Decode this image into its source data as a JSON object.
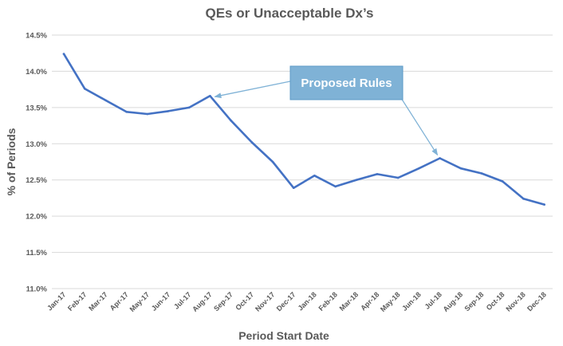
{
  "chart_data": {
    "type": "line",
    "title": "QEs or Unacceptable Dx’s",
    "xlabel": "Period Start Date",
    "ylabel": "% of Periods",
    "ylim": [
      11.0,
      14.5
    ],
    "yticks": [
      "11.0%",
      "11.5%",
      "12.0%",
      "12.5%",
      "13.0%",
      "13.5%",
      "14.0%",
      "14.5%"
    ],
    "grid": true,
    "categories": [
      "Jan-17",
      "Feb-17",
      "Mar-17",
      "Apr-17",
      "May-17",
      "Jun-17",
      "Jul-17",
      "Aug-17",
      "Sep-17",
      "Oct-17",
      "Nov-17",
      "Dec-17",
      "Jan-18",
      "Feb-18",
      "Mar-18",
      "Apr-18",
      "May-18",
      "Jun-18",
      "Jul-18",
      "Aug-18",
      "Sep-18",
      "Oct-18",
      "Nov-18",
      "Dec-18"
    ],
    "series": [
      {
        "color": "#4472c4",
        "values": [
          14.24,
          13.76,
          13.6,
          13.44,
          13.41,
          13.45,
          13.5,
          13.66,
          13.32,
          13.02,
          12.75,
          12.39,
          12.56,
          12.41,
          12.5,
          12.58,
          12.53,
          12.66,
          12.8,
          12.66,
          12.59,
          12.48,
          12.24,
          12.16
        ]
      }
    ],
    "annotations": [
      {
        "text": "Proposed Rules",
        "points_to": [
          "Aug-17",
          "Jul-18"
        ],
        "color": "#7fb2d6"
      }
    ]
  }
}
